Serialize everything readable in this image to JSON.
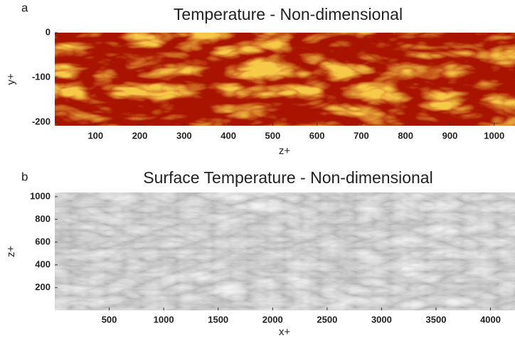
{
  "chart_data": [
    {
      "type": "heatmap",
      "panel": "a",
      "title": "Temperature - Non-dimensional",
      "xlabel": "z+",
      "ylabel": "y+",
      "colormap": "hot",
      "xlim": [
        8,
        1047
      ],
      "xticks": [
        100,
        200,
        300,
        400,
        500,
        600,
        700,
        800,
        900,
        1000
      ],
      "ylim": [
        -208,
        0
      ],
      "yticks": [
        0,
        -100,
        -200
      ]
    },
    {
      "type": "heatmap",
      "panel": "b",
      "title": "Surface Temperature - Non-dimensional",
      "xlabel": "x+",
      "ylabel": "z+",
      "colormap": "gray",
      "xlim": [
        0,
        4225
      ],
      "xticks": [
        500,
        1000,
        1500,
        2000,
        2500,
        3000,
        3500,
        4000
      ],
      "ylim": [
        0,
        1037
      ],
      "yticks": [
        200,
        400,
        600,
        800,
        1000
      ]
    }
  ]
}
